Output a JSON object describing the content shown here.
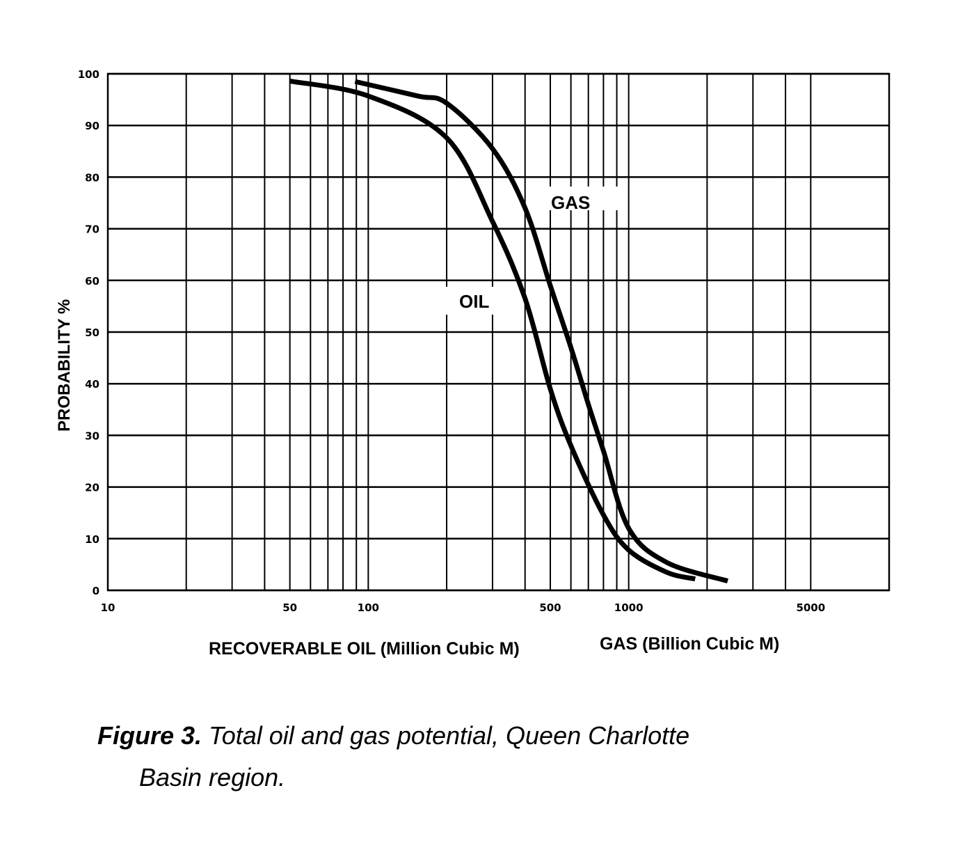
{
  "chart_data": {
    "type": "line",
    "xscale": "log",
    "xlim": [
      10,
      10000
    ],
    "ylim": [
      0,
      100
    ],
    "grid": true,
    "xgrid": [
      10,
      20,
      30,
      40,
      50,
      60,
      70,
      80,
      90,
      100,
      200,
      300,
      400,
      500,
      600,
      700,
      800,
      900,
      1000,
      2000,
      3000,
      4000,
      5000,
      10000
    ],
    "xticks": [
      {
        "v": 10,
        "label": "10"
      },
      {
        "v": 50,
        "label": "50"
      },
      {
        "v": 100,
        "label": "100"
      },
      {
        "v": 500,
        "label": "500"
      },
      {
        "v": 1000,
        "label": "1000"
      },
      {
        "v": 5000,
        "label": "5000"
      }
    ],
    "yticks": [
      0,
      10,
      20,
      30,
      40,
      50,
      60,
      70,
      80,
      90,
      100
    ],
    "ylabel": "PROBABILITY %",
    "xlabel_oil": "RECOVERABLE OIL (Million Cubic M)",
    "xlabel_gas": "GAS (Billion Cubic M)",
    "series": [
      {
        "name": "OIL",
        "label": "OIL",
        "x": [
          50,
          100,
          200,
          300,
          400,
          500,
          600,
          800,
          1000,
          1400,
          1800
        ],
        "y": [
          98.6,
          95.7,
          87.6,
          71.4,
          56.5,
          39,
          28,
          14.6,
          7.8,
          3.5,
          2.2
        ]
      },
      {
        "name": "GAS",
        "label": "GAS",
        "x": [
          89,
          155,
          200,
          300,
          400,
          500,
          600,
          700,
          800,
          1000,
          1400,
          2400
        ],
        "y": [
          98.5,
          95.7,
          94.3,
          85.5,
          74,
          59,
          47,
          36,
          27,
          12,
          5.4,
          1.8
        ]
      }
    ]
  },
  "caption": {
    "figure": "Figure 3.",
    "line1": "Total oil and gas potential, Queen Charlotte",
    "line2": "Basin  region."
  }
}
